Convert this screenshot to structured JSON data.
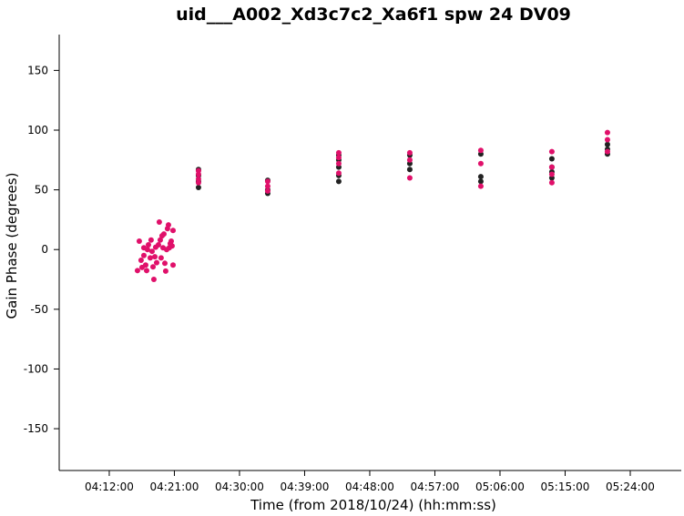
{
  "chart_data": {
    "type": "scatter",
    "title": "uid___A002_Xd3c7c2_Xa6f1 spw 24 DV09",
    "x_label": "Time (from 2018/10/24) (hh:mm:ss)",
    "y_label": "Gain Phase (degrees)",
    "xlim": [
      "04:05:05",
      "05:31:03"
    ],
    "xticks": [
      "04:12:00",
      "04:21:00",
      "04:30:00",
      "04:39:00",
      "04:48:00",
      "04:57:00",
      "05:06:00",
      "05:15:00",
      "05:24:00"
    ],
    "ylim": [
      -185,
      180
    ],
    "yticks": [
      -150,
      -100,
      -50,
      0,
      50,
      100,
      150
    ],
    "series": [
      {
        "color": "#222222",
        "x": [
          "04:24:20",
          "04:24:20",
          "04:24:20",
          "04:24:20",
          "04:33:54",
          "04:33:54",
          "04:33:54",
          "04:43:43",
          "04:43:43",
          "04:43:43",
          "04:43:43",
          "04:43:43",
          "04:53:32",
          "04:53:32",
          "04:53:32",
          "05:03:21",
          "05:03:21",
          "05:03:21",
          "05:13:10",
          "05:13:10",
          "05:13:10",
          "05:13:10",
          "05:20:51",
          "05:20:51",
          "05:20:51"
        ],
        "values": [
          67,
          62,
          52,
          57,
          58,
          47,
          50,
          75,
          69,
          62,
          57,
          79,
          79,
          72,
          67,
          80,
          61,
          57,
          76,
          65,
          60,
          69,
          88,
          84,
          80
        ]
      },
      {
        "color": "#e0106a",
        "x": [
          "04:15:54",
          "04:16:09",
          "04:16:24",
          "04:16:32",
          "04:16:47",
          "04:16:47",
          "04:17:02",
          "04:17:10",
          "04:17:17",
          "04:17:25",
          "04:17:40",
          "04:17:47",
          "04:17:55",
          "04:18:03",
          "04:18:10",
          "04:18:18",
          "04:18:25",
          "04:18:33",
          "04:18:48",
          "04:18:55",
          "04:19:03",
          "04:19:10",
          "04:19:18",
          "04:19:26",
          "04:19:33",
          "04:19:41",
          "04:19:48",
          "04:19:56",
          "04:20:03",
          "04:20:11",
          "04:20:18",
          "04:20:26",
          "04:20:34",
          "04:20:41",
          "04:20:49",
          "04:20:49",
          "04:24:20",
          "04:24:20",
          "04:24:20",
          "04:24:20",
          "04:33:54",
          "04:33:54",
          "04:33:54",
          "04:43:43",
          "04:43:43",
          "04:43:43",
          "04:43:43",
          "04:53:32",
          "04:53:32",
          "04:53:32",
          "05:03:21",
          "05:03:21",
          "05:03:21",
          "05:13:10",
          "05:13:10",
          "05:13:10",
          "05:13:10",
          "05:20:51",
          "05:20:51",
          "05:20:51"
        ],
        "values": [
          -17.6,
          7,
          -9,
          -15,
          -5,
          1.5,
          -13,
          -17.6,
          0,
          4,
          -7,
          8,
          -1.5,
          -14.5,
          -25,
          -6,
          2,
          -11,
          4,
          23,
          8,
          -7,
          11.5,
          1.5,
          13,
          -11.5,
          -18,
          0,
          17.5,
          20.6,
          1.5,
          5,
          7,
          3,
          -13,
          16,
          66,
          59,
          56,
          63,
          57,
          53,
          49,
          81,
          72,
          64,
          77,
          81,
          75,
          60,
          83,
          72,
          53,
          82,
          69,
          56,
          63,
          98,
          92,
          82
        ]
      }
    ]
  }
}
